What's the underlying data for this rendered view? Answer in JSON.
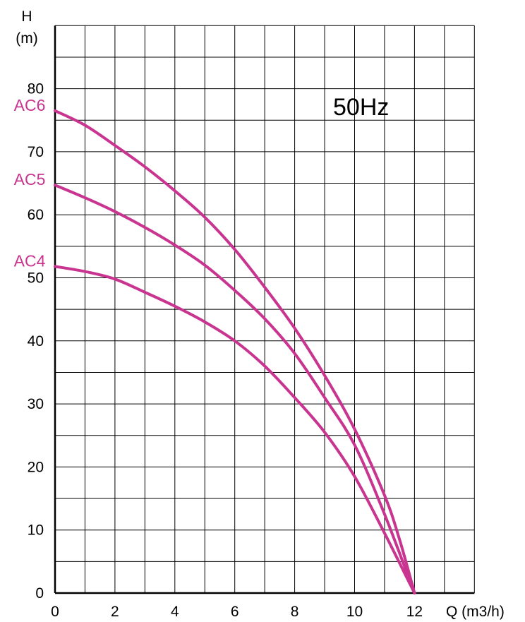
{
  "chart_data": {
    "type": "line",
    "title": "",
    "annotation": "50Hz",
    "xlabel": "Q (m3/h)",
    "ylabel_line1": "H",
    "ylabel_line2": "(m)",
    "xlim": [
      0,
      14
    ],
    "ylim": [
      0,
      90
    ],
    "x_ticks": [
      0,
      2,
      4,
      6,
      8,
      10,
      12
    ],
    "y_ticks": [
      0,
      10,
      20,
      30,
      40,
      50,
      60,
      70,
      80
    ],
    "x_minor_step": 1,
    "y_minor_step": 5,
    "grid": true,
    "series_color": "#c8348f",
    "series": [
      {
        "name": "AC6",
        "x": [
          0,
          1,
          2,
          3,
          4,
          5,
          6,
          7,
          8,
          9,
          10,
          11,
          11.5,
          12
        ],
        "y": [
          76.5,
          74.2,
          71,
          67.6,
          63.8,
          59.6,
          54.5,
          48.5,
          42,
          34.5,
          26,
          15.5,
          8.5,
          0
        ]
      },
      {
        "name": "AC5",
        "x": [
          0,
          1,
          2,
          3,
          4,
          5,
          6,
          7,
          8,
          9,
          10,
          11,
          12
        ],
        "y": [
          64.7,
          62.7,
          60.5,
          58,
          55.2,
          52,
          48,
          43.5,
          38,
          31,
          23.5,
          12.5,
          0
        ]
      },
      {
        "name": "AC4",
        "x": [
          0,
          1,
          2,
          3,
          4,
          5,
          6,
          7,
          8,
          9,
          10,
          11,
          12
        ],
        "y": [
          51.8,
          51,
          49.8,
          47.7,
          45.5,
          43,
          40,
          36,
          31,
          25.5,
          18.5,
          9.5,
          0
        ]
      }
    ]
  }
}
